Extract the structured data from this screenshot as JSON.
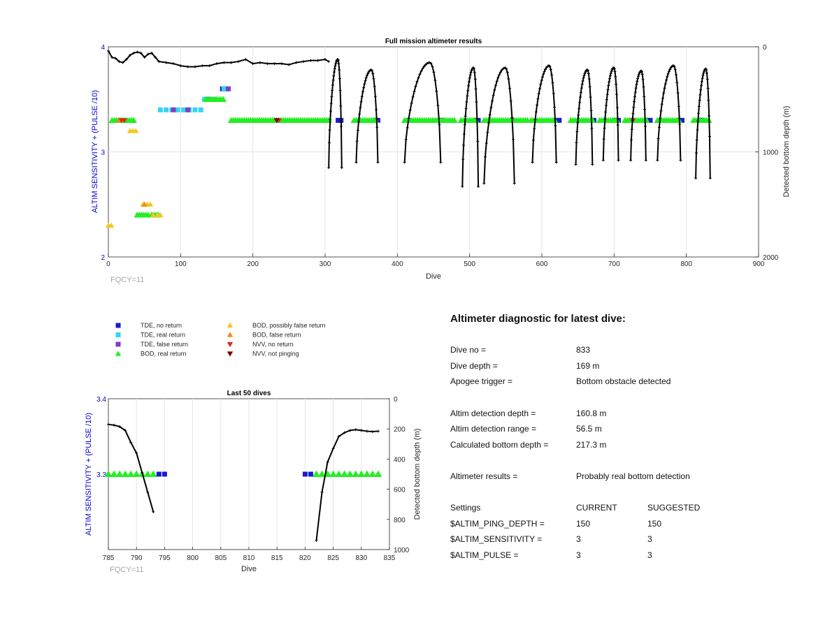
{
  "chart_data": [
    {
      "type": "scatter",
      "title": "Full mission altimeter results",
      "xlabel": "Dive",
      "ylabel": "ALTIM SENSITIVITY + (PULSE /10)",
      "ylabel_right": "Detected bottom depth (m)",
      "xlim": [
        0,
        900
      ],
      "ylim": [
        2,
        4
      ],
      "ylim_right": [
        2000,
        0
      ],
      "x_ticks": [
        "0",
        "100",
        "200",
        "300",
        "400",
        "500",
        "600",
        "700",
        "800",
        "900"
      ],
      "y_ticks": [
        "2",
        "3",
        "4"
      ],
      "y_ticks_right": [
        "0",
        "1000",
        "2000"
      ],
      "footer": "FQCY=11",
      "series": [
        {
          "name": "TDE, no return",
          "marker": "square",
          "color": "#1a1acc",
          "points": [
            [
              318,
              3.3
            ],
            [
              322,
              3.3
            ],
            [
              370,
              3.3
            ],
            [
              373,
              3.3
            ],
            [
              462,
              3.3
            ],
            [
              508,
              3.3
            ],
            [
              512,
              3.3
            ],
            [
              560,
              3.3
            ],
            [
              620,
              3.3
            ],
            [
              624,
              3.3
            ],
            [
              672,
              3.3
            ],
            [
              702,
              3.3
            ],
            [
              706,
              3.3
            ],
            [
              746,
              3.3
            ],
            [
              750,
              3.3
            ],
            [
              790,
              3.3
            ],
            [
              794,
              3.3
            ],
            [
              820,
              3.3
            ],
            [
              821,
              3.3
            ],
            [
              158,
              3.6
            ],
            [
              162,
              3.6
            ]
          ]
        },
        {
          "name": "TDE, real return",
          "marker": "square",
          "color": "#33d6f2",
          "points": [
            [
              72,
              3.4
            ],
            [
              80,
              3.4
            ],
            [
              88,
              3.4
            ],
            [
              96,
              3.4
            ],
            [
              104,
              3.4
            ],
            [
              112,
              3.4
            ],
            [
              120,
              3.4
            ],
            [
              128,
              3.4
            ],
            [
              133,
              3.5
            ],
            [
              140,
              3.5
            ],
            [
              146,
              3.5
            ],
            [
              160,
              3.6
            ],
            [
              164,
              3.6
            ]
          ]
        },
        {
          "name": "TDE, false return",
          "marker": "square",
          "color": "#7e3fc4",
          "points": [
            [
              90,
              3.4
            ],
            [
              110,
              3.4
            ],
            [
              138,
              3.5
            ],
            [
              166,
              3.6
            ]
          ]
        },
        {
          "name": "BOD, real return",
          "marker": "triangle-up",
          "color": "#22ee22",
          "segments": [
            [
              5,
              35,
              3.3
            ],
            [
              170,
              305,
              3.3
            ],
            [
              340,
              370,
              3.3
            ],
            [
              410,
              480,
              3.3
            ],
            [
              488,
              510,
              3.3
            ],
            [
              520,
              580,
              3.3
            ],
            [
              585,
              620,
              3.3
            ],
            [
              640,
              670,
              3.3
            ],
            [
              680,
              705,
              3.3
            ],
            [
              715,
              745,
              3.3
            ],
            [
              760,
              790,
              3.3
            ],
            [
              810,
              833,
              3.3
            ],
            [
              135,
              160,
              3.5
            ],
            [
              40,
              55,
              2.4
            ],
            [
              60,
              70,
              2.4
            ]
          ]
        },
        {
          "name": "BOD, possibly false return",
          "marker": "triangle-up",
          "color": "#f2c81a",
          "points": [
            [
              0,
              2.3
            ],
            [
              4,
              2.3
            ],
            [
              30,
              3.2
            ],
            [
              34,
              3.2
            ],
            [
              38,
              3.2
            ],
            [
              48,
              2.5
            ],
            [
              54,
              2.5
            ],
            [
              58,
              2.5
            ],
            [
              62,
              2.4
            ],
            [
              68,
              2.4
            ],
            [
              72,
              2.4
            ]
          ]
        },
        {
          "name": "BOD, false return",
          "marker": "triangle-up",
          "color": "#f28c1a",
          "points": [
            [
              50,
              2.5
            ],
            [
              15,
              3.3
            ]
          ]
        },
        {
          "name": "NVV, no return",
          "marker": "triangle-down",
          "color": "#dd2a1a",
          "points": [
            [
              18,
              3.3
            ],
            [
              22,
              3.3
            ],
            [
              236,
              3.3
            ],
            [
              726,
              3.3
            ]
          ]
        },
        {
          "name": "NVV, not pinging",
          "marker": "triangle-down",
          "color": "#7a0000",
          "points": [
            [
              233,
              3.3
            ]
          ]
        }
      ],
      "depth_profile": {
        "color": "#000000",
        "flat": [
          [
            0,
            40
          ],
          [
            5,
            100
          ],
          [
            10,
            110
          ],
          [
            15,
            140
          ],
          [
            20,
            150
          ],
          [
            25,
            120
          ],
          [
            30,
            80
          ],
          [
            35,
            60
          ],
          [
            40,
            50
          ],
          [
            45,
            60
          ],
          [
            50,
            100
          ],
          [
            55,
            70
          ],
          [
            60,
            60
          ],
          [
            65,
            100
          ],
          [
            70,
            140
          ],
          [
            80,
            150
          ],
          [
            90,
            160
          ],
          [
            100,
            180
          ],
          [
            110,
            190
          ],
          [
            120,
            190
          ],
          [
            130,
            180
          ],
          [
            140,
            180
          ],
          [
            150,
            160
          ],
          [
            160,
            150
          ],
          [
            170,
            150
          ],
          [
            180,
            140
          ],
          [
            190,
            120
          ],
          [
            200,
            160
          ],
          [
            210,
            150
          ],
          [
            220,
            160
          ],
          [
            230,
            160
          ],
          [
            240,
            160
          ],
          [
            250,
            170
          ],
          [
            260,
            150
          ],
          [
            270,
            140
          ],
          [
            280,
            130
          ],
          [
            290,
            130
          ],
          [
            300,
            120
          ],
          [
            305,
            140
          ]
        ],
        "dives": [
          {
            "start": 305,
            "end": 323,
            "min": 120,
            "max": 1150
          },
          {
            "start": 343,
            "end": 373,
            "min": 220,
            "max": 1100
          },
          {
            "start": 410,
            "end": 460,
            "min": 150,
            "max": 1100
          },
          {
            "start": 490,
            "end": 512,
            "min": 200,
            "max": 1330
          },
          {
            "start": 520,
            "end": 562,
            "min": 200,
            "max": 1300
          },
          {
            "start": 587,
            "end": 620,
            "min": 180,
            "max": 1100
          },
          {
            "start": 647,
            "end": 670,
            "min": 220,
            "max": 1120
          },
          {
            "start": 685,
            "end": 706,
            "min": 200,
            "max": 1080
          },
          {
            "start": 723,
            "end": 744,
            "min": 230,
            "max": 1080
          },
          {
            "start": 760,
            "end": 792,
            "min": 180,
            "max": 1080
          },
          {
            "start": 813,
            "end": 833,
            "min": 210,
            "max": 1250
          }
        ]
      }
    },
    {
      "type": "scatter",
      "title": "Last 50 dives",
      "xlabel": "Dive",
      "ylabel": "ALTIM SENSITIVITY + (PULSE /10)",
      "ylabel_right": "Detected bottom depth (m)",
      "xlim": [
        785,
        835
      ],
      "ylim": [
        3.2,
        3.4
      ],
      "ylim_right": [
        1000,
        0
      ],
      "x_ticks": [
        "785",
        "790",
        "795",
        "800",
        "805",
        "810",
        "815",
        "820",
        "825",
        "830",
        "835"
      ],
      "y_ticks": [
        "3.4",
        "3.3"
      ],
      "y_ticks_right": [
        "0",
        "200",
        "400",
        "600",
        "800",
        "1000"
      ],
      "footer": "FQCY=11",
      "bod_real": [
        785,
        786,
        787,
        788,
        789,
        790,
        791,
        792,
        793,
        822,
        823,
        824,
        825,
        826,
        827,
        828,
        829,
        830,
        831,
        832,
        833
      ],
      "tde_no_return": [
        794,
        795,
        820,
        821
      ],
      "depth_dive_a": {
        "x": [
          785,
          786,
          787,
          788,
          789,
          790,
          791,
          792,
          793
        ],
        "y": [
          170,
          175,
          185,
          210,
          290,
          360,
          490,
          620,
          750
        ]
      },
      "depth_dive_b": {
        "x": [
          822,
          823,
          824,
          825,
          826,
          827,
          828,
          829,
          830,
          831,
          832,
          833
        ],
        "y": [
          940,
          620,
          420,
          330,
          250,
          225,
          210,
          205,
          210,
          215,
          218,
          215
        ]
      }
    }
  ],
  "legend": [
    {
      "label": "TDE, no return",
      "color": "#1a1acc",
      "marker": "square"
    },
    {
      "label": "TDE, real return",
      "color": "#33d6f2",
      "marker": "square"
    },
    {
      "label": "TDE, false return",
      "color": "#7e3fc4",
      "marker": "square"
    },
    {
      "label": "BOD, real return",
      "color": "#22ee22",
      "marker": "triangle-up"
    },
    {
      "label": "BOD, possibly false return",
      "color": "#f2c81a",
      "marker": "triangle-up"
    },
    {
      "label": "BOD, false return",
      "color": "#f28c1a",
      "marker": "triangle-up"
    },
    {
      "label": "NVV, no return",
      "color": "#dd2a1a",
      "marker": "triangle-down"
    },
    {
      "label": "NVV, not pinging",
      "color": "#7a0000",
      "marker": "triangle-down"
    }
  ],
  "diagnostic": {
    "title": "Altimeter diagnostic for latest dive:",
    "rows": [
      {
        "k": "Dive no =",
        "v": "833"
      },
      {
        "k": "Dive depth =",
        "v": "169 m"
      },
      {
        "k": "Apogee trigger =",
        "v": "Bottom obstacle detected"
      },
      {
        "k": "Altim detection depth =",
        "v": "160.8 m"
      },
      {
        "k": "Altim detection range =",
        "v": "56.5 m"
      },
      {
        "k": "Calculated bottom depth =",
        "v": "217.3 m"
      },
      {
        "k": "Altimeter results =",
        "v": "Probably real bottom detection"
      }
    ],
    "settings_header": {
      "k": "Settings",
      "v": "CURRENT",
      "s": "SUGGESTED"
    },
    "settings": [
      {
        "k": "$ALTIM_PING_DEPTH =",
        "v": "150",
        "s": "150"
      },
      {
        "k": "$ALTIM_SENSITIVITY =",
        "v": "3",
        "s": "3"
      },
      {
        "k": "$ALTIM_PULSE =",
        "v": "3",
        "s": "3"
      }
    ]
  }
}
